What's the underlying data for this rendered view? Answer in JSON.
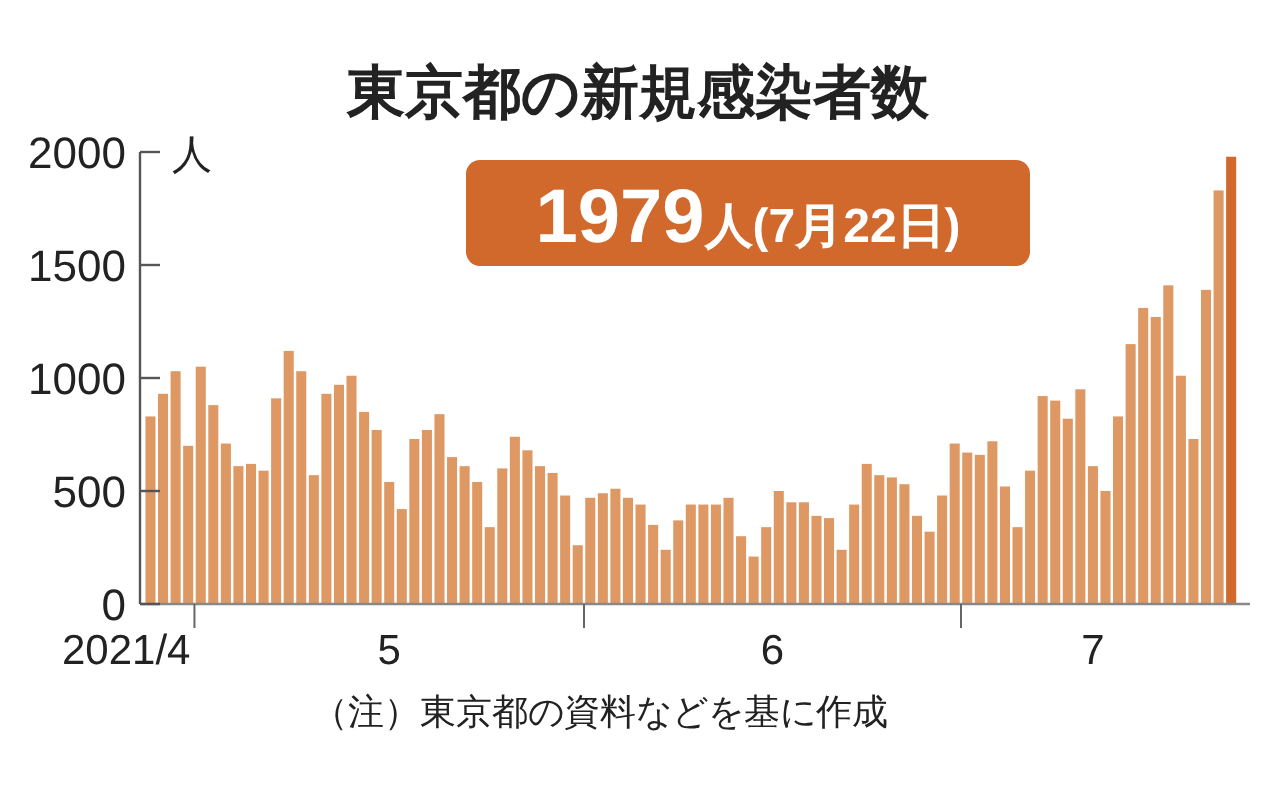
{
  "chart_data": {
    "type": "bar",
    "title": "東京都の新規感染者数",
    "ylabel": "人",
    "x": [
      "2021-04-27",
      "2021-04-28",
      "2021-04-29",
      "2021-04-30",
      "2021-05-01",
      "2021-05-02",
      "2021-05-03",
      "2021-05-04",
      "2021-05-05",
      "2021-05-06",
      "2021-05-07",
      "2021-05-08",
      "2021-05-09",
      "2021-05-10",
      "2021-05-11",
      "2021-05-12",
      "2021-05-13",
      "2021-05-14",
      "2021-05-15",
      "2021-05-16",
      "2021-05-17",
      "2021-05-18",
      "2021-05-19",
      "2021-05-20",
      "2021-05-21",
      "2021-05-22",
      "2021-05-23",
      "2021-05-24",
      "2021-05-25",
      "2021-05-26",
      "2021-05-27",
      "2021-05-28",
      "2021-05-29",
      "2021-05-30",
      "2021-05-31",
      "2021-06-01",
      "2021-06-02",
      "2021-06-03",
      "2021-06-04",
      "2021-06-05",
      "2021-06-06",
      "2021-06-07",
      "2021-06-08",
      "2021-06-09",
      "2021-06-10",
      "2021-06-11",
      "2021-06-12",
      "2021-06-13",
      "2021-06-14",
      "2021-06-15",
      "2021-06-16",
      "2021-06-17",
      "2021-06-18",
      "2021-06-19",
      "2021-06-20",
      "2021-06-21",
      "2021-06-22",
      "2021-06-23",
      "2021-06-24",
      "2021-06-25",
      "2021-06-26",
      "2021-06-27",
      "2021-06-28",
      "2021-06-29",
      "2021-06-30",
      "2021-07-01",
      "2021-07-02",
      "2021-07-03",
      "2021-07-04",
      "2021-07-05",
      "2021-07-06",
      "2021-07-07",
      "2021-07-08",
      "2021-07-09",
      "2021-07-10",
      "2021-07-11",
      "2021-07-12",
      "2021-07-13",
      "2021-07-14",
      "2021-07-15",
      "2021-07-16",
      "2021-07-17",
      "2021-07-18",
      "2021-07-19",
      "2021-07-20",
      "2021-07-21",
      "2021-07-22"
    ],
    "values": [
      830,
      930,
      1030,
      700,
      1050,
      880,
      710,
      610,
      620,
      590,
      910,
      1120,
      1030,
      570,
      930,
      970,
      1010,
      850,
      770,
      540,
      420,
      730,
      770,
      840,
      650,
      610,
      540,
      340,
      600,
      740,
      680,
      610,
      580,
      480,
      260,
      470,
      490,
      510,
      470,
      440,
      350,
      240,
      370,
      440,
      440,
      440,
      470,
      300,
      210,
      340,
      500,
      450,
      450,
      390,
      380,
      240,
      440,
      620,
      570,
      560,
      530,
      390,
      320,
      480,
      710,
      670,
      660,
      720,
      520,
      340,
      590,
      920,
      900,
      820,
      950,
      610,
      500,
      830,
      1150,
      1310,
      1270,
      1410,
      1010,
      730,
      1390,
      1830,
      1979
    ],
    "colors": [
      "#de9863",
      "#de9863",
      "#de9863",
      "#de9863",
      "#de9863",
      "#de9863",
      "#de9863",
      "#de9863",
      "#de9863",
      "#de9863",
      "#de9863",
      "#de9863",
      "#de9863",
      "#de9863",
      "#de9863",
      "#de9863",
      "#de9863",
      "#de9863",
      "#de9863",
      "#de9863",
      "#de9863",
      "#de9863",
      "#de9863",
      "#de9863",
      "#de9863",
      "#de9863",
      "#de9863",
      "#de9863",
      "#de9863",
      "#de9863",
      "#de9863",
      "#de9863",
      "#de9863",
      "#de9863",
      "#de9863",
      "#de9863",
      "#de9863",
      "#de9863",
      "#de9863",
      "#de9863",
      "#de9863",
      "#de9863",
      "#de9863",
      "#de9863",
      "#de9863",
      "#de9863",
      "#de9863",
      "#de9863",
      "#de9863",
      "#de9863",
      "#de9863",
      "#de9863",
      "#de9863",
      "#de9863",
      "#de9863",
      "#de9863",
      "#de9863",
      "#de9863",
      "#de9863",
      "#de9863",
      "#de9863",
      "#de9863",
      "#de9863",
      "#de9863",
      "#de9863",
      "#de9863",
      "#de9863",
      "#de9863",
      "#de9863",
      "#de9863",
      "#de9863",
      "#de9863",
      "#de9863",
      "#de9863",
      "#de9863",
      "#de9863",
      "#de9863",
      "#de9863",
      "#de9863",
      "#de9863",
      "#de9863",
      "#de9863",
      "#de9863",
      "#de9863",
      "#de9863",
      "#de9863",
      "#d2692c"
    ],
    "xlim": [
      "2021-04-26T16:00",
      "2021-07-24"
    ],
    "xticks": [
      {
        "value": "2021-05-01",
        "label": null
      },
      {
        "value": "2021-05-16T12:00",
        "label": "5"
      },
      {
        "value": "2021-06-01",
        "label": null
      },
      {
        "value": "2021-06-16",
        "label": "6"
      },
      {
        "value": "2021-07-01",
        "label": null
      },
      {
        "value": "2021-07-11T12:00",
        "label": "7"
      }
    ],
    "ylim": [
      0,
      2000
    ],
    "yticks": [
      0,
      500,
      1000,
      1500,
      2000
    ],
    "annotations": [
      "1979人(7月22日)",
      "2021/4",
      "（注）東京都の資料などを基に作成"
    ]
  }
}
